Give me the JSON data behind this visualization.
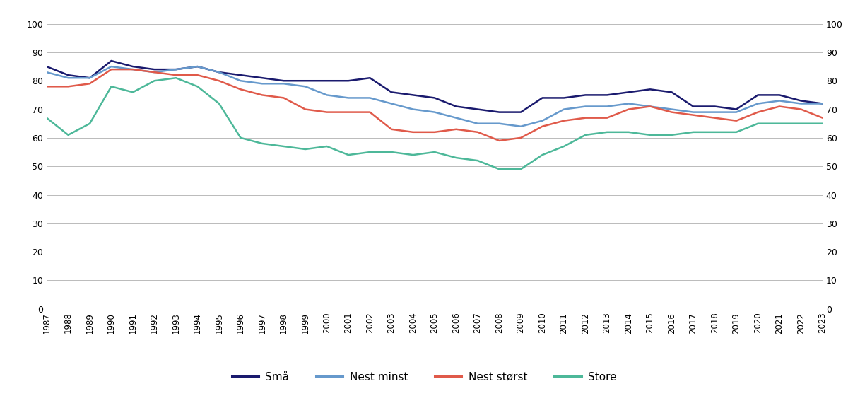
{
  "years": [
    1987,
    1988,
    1989,
    1990,
    1991,
    1992,
    1993,
    1994,
    1995,
    1996,
    1997,
    1998,
    1999,
    2000,
    2001,
    2002,
    2003,
    2004,
    2005,
    2006,
    2007,
    2008,
    2009,
    2010,
    2011,
    2012,
    2013,
    2014,
    2015,
    2016,
    2017,
    2018,
    2019,
    2020,
    2021,
    2022,
    2023
  ],
  "sma": [
    85,
    82,
    81,
    87,
    85,
    84,
    84,
    85,
    83,
    82,
    81,
    80,
    80,
    80,
    80,
    81,
    76,
    75,
    74,
    71,
    70,
    69,
    69,
    74,
    74,
    75,
    75,
    76,
    77,
    76,
    71,
    71,
    70,
    75,
    75,
    73,
    72
  ],
  "nest_minst": [
    83,
    81,
    81,
    85,
    84,
    83,
    84,
    85,
    83,
    80,
    79,
    79,
    78,
    75,
    74,
    74,
    72,
    70,
    69,
    67,
    65,
    65,
    64,
    66,
    70,
    71,
    71,
    72,
    71,
    70,
    69,
    69,
    69,
    72,
    73,
    72,
    72
  ],
  "nest_storst": [
    78,
    78,
    79,
    84,
    84,
    83,
    82,
    82,
    80,
    77,
    75,
    74,
    70,
    69,
    69,
    69,
    63,
    62,
    62,
    63,
    62,
    59,
    60,
    64,
    66,
    67,
    67,
    70,
    71,
    69,
    68,
    67,
    66,
    69,
    71,
    70,
    67
  ],
  "store": [
    67,
    61,
    65,
    78,
    76,
    80,
    81,
    78,
    72,
    60,
    58,
    57,
    56,
    57,
    54,
    55,
    55,
    54,
    55,
    53,
    52,
    49,
    49,
    54,
    57,
    61,
    62,
    62,
    61,
    61,
    62,
    62,
    62,
    65,
    65,
    65,
    65
  ],
  "sma_color": "#1a1a6e",
  "nest_minst_color": "#6699cc",
  "nest_storst_color": "#e05a4a",
  "store_color": "#4db899",
  "ylim": [
    0,
    100
  ],
  "yticks": [
    0,
    10,
    20,
    30,
    40,
    50,
    60,
    70,
    80,
    90,
    100
  ],
  "legend_labels": [
    "Små",
    "Nest minst",
    "Nest størst",
    "Store"
  ],
  "line_width": 1.8
}
